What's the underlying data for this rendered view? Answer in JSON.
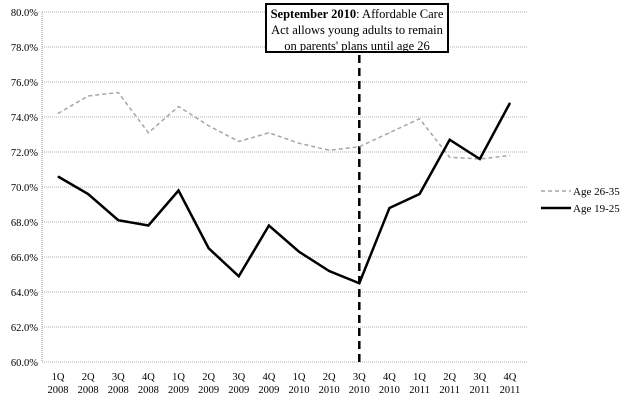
{
  "chart_data": {
    "type": "line",
    "categories": [
      "1Q 2008",
      "2Q 2008",
      "3Q 2008",
      "4Q 2008",
      "1Q 2009",
      "2Q 2009",
      "3Q 2009",
      "4Q 2009",
      "1Q 2010",
      "2Q 2010",
      "3Q 2010",
      "4Q 2010",
      "1Q 2011",
      "2Q 2011",
      "3Q 2011",
      "4Q 2011"
    ],
    "ylim": [
      60,
      80
    ],
    "yticks": [
      "60.0%",
      "62.0%",
      "64.0%",
      "66.0%",
      "68.0%",
      "70.0%",
      "72.0%",
      "74.0%",
      "76.0%",
      "78.0%",
      "80.0%"
    ],
    "grid": true,
    "legend_position": "right",
    "series": [
      {
        "name": "Age 26-35",
        "color": "#a6a6a6",
        "style": "dashed",
        "values": [
          74.2,
          75.2,
          75.4,
          73.1,
          74.6,
          73.5,
          72.6,
          73.1,
          72.5,
          72.1,
          72.3,
          73.1,
          73.9,
          71.7,
          71.6,
          71.8
        ]
      },
      {
        "name": "Age 19-25",
        "color": "#000000",
        "style": "solid",
        "values": [
          70.6,
          69.6,
          68.1,
          67.8,
          69.8,
          66.5,
          64.9,
          67.8,
          66.3,
          65.2,
          64.5,
          68.8,
          69.6,
          72.7,
          71.6,
          74.8
        ]
      }
    ],
    "annotation": {
      "category": "3Q 2010",
      "bold": "September 2010",
      "text": ":  Affordable Care Act allows young adults to remain on parents' plans until age 26"
    }
  }
}
